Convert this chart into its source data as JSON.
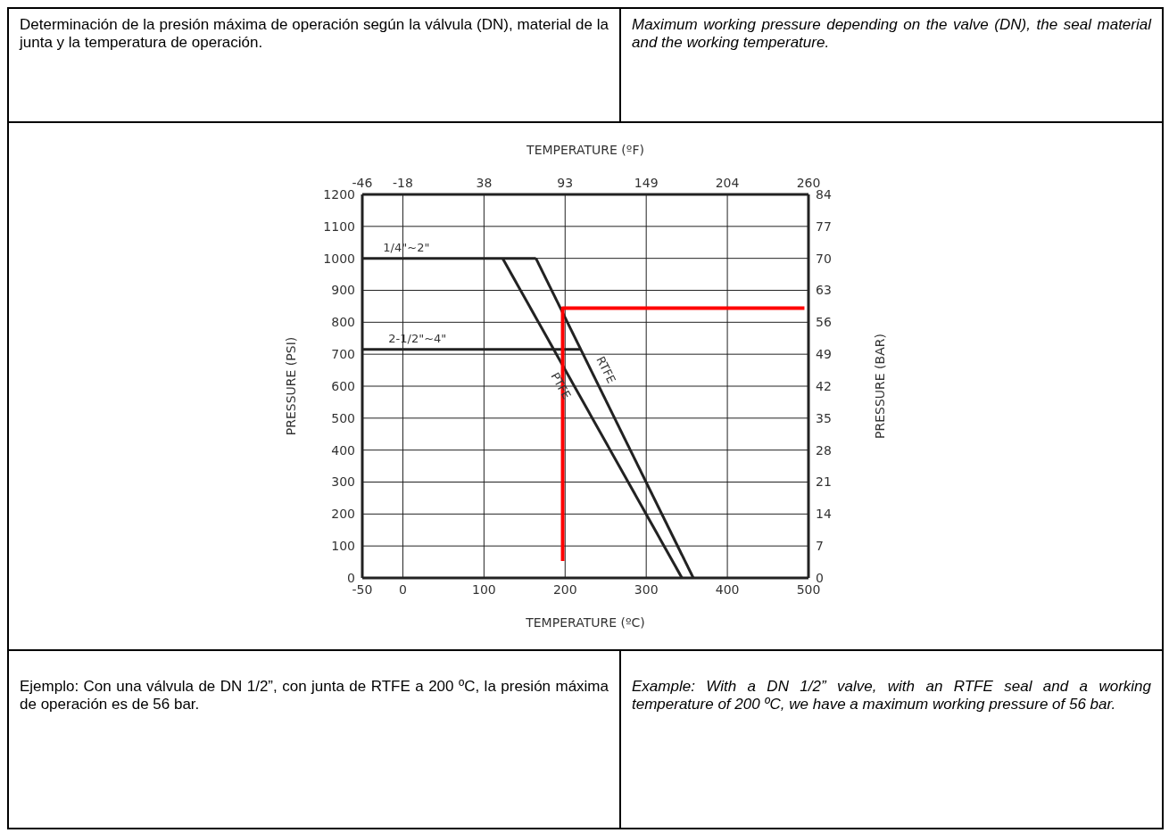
{
  "chart_data": {
    "type": "line",
    "title": "Determinación de la presión máxima de operación según la válvula (DN), material de la junta y la temperatura de operación.",
    "subtitle": "Maximum working pressure depending on the valve (DN), the seal material and the working temperature.",
    "xlabel": "TEMPERATURE (ºC)",
    "x2label": "TEMPERATURE (ºF)",
    "ylabel": "PRESSURE (PSI)",
    "y2label": "PRESSURE (BAR)",
    "xlim": [
      -50,
      500
    ],
    "xticks": [
      -50,
      0,
      100,
      200,
      300,
      400,
      500
    ],
    "x2lim": [
      -45.6,
      260
    ],
    "x2ticks": [
      {
        "value": -45.6,
        "label": "-46"
      },
      {
        "value": -17.8,
        "label": "-18"
      },
      {
        "value": 37.8,
        "label": "38"
      },
      {
        "value": 93.3,
        "label": "93"
      },
      {
        "value": 148.9,
        "label": "149"
      },
      {
        "value": 204.4,
        "label": "204"
      },
      260
    ],
    "ylim": [
      0,
      1200
    ],
    "yticks": [
      0,
      100,
      200,
      300,
      400,
      500,
      600,
      700,
      800,
      900,
      1000,
      1100,
      1200
    ],
    "y2lim": [
      0,
      84
    ],
    "y2ticks": [
      0,
      7,
      14,
      21,
      28,
      35,
      42,
      49,
      56,
      63,
      70,
      77,
      84
    ],
    "grid": true,
    "marker": "none",
    "line_style": "solid",
    "series": [
      {
        "name": "1/4\"~2\"",
        "color": "#222222",
        "x": [
          -50,
          164
        ],
        "values": [
          1000,
          1000
        ]
      },
      {
        "name": "PTFE",
        "color": "#222222",
        "x": [
          123,
          344
        ],
        "values": [
          1000,
          0
        ]
      },
      {
        "name": "RTFE",
        "color": "#222222",
        "x": [
          164,
          358
        ],
        "values": [
          1000,
          0
        ]
      },
      {
        "name": "2-1/2\"~4\"",
        "color": "#222222",
        "x": [
          -50,
          219
        ],
        "values": [
          715,
          715
        ]
      },
      {
        "color": "#ff0000",
        "x": [
          197,
          197,
          495
        ],
        "values": [
          53,
          844,
          844
        ]
      }
    ],
    "annotations": [
      "Ejemplo: Con una válvula de DN 1/2”, con junta de RTFE a 200 ºC, la presión máxima de operación es de 56 bar.",
      "Example: With a DN 1/2” valve, with an RTFE seal and a working temperature of 200 ºC, we have a maximum working pressure of 56 bar."
    ]
  }
}
